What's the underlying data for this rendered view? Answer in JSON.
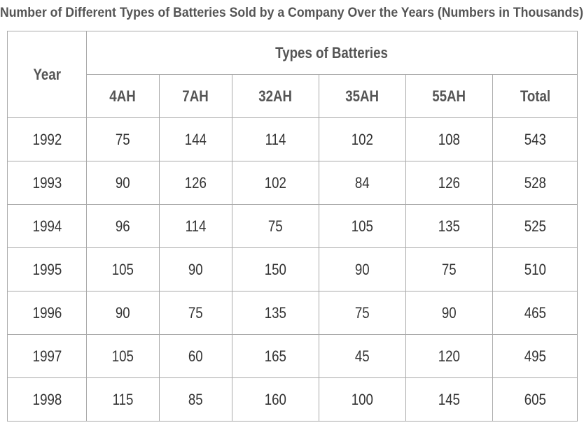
{
  "title": "Number of Different Types of Batteries Sold by a Company Over the Years (Numbers in Thousands)",
  "table": {
    "year_header": "Year",
    "group_header": "Types of Batteries",
    "columns": [
      "4AH",
      "7AH",
      "32AH",
      "35AH",
      "55AH",
      "Total"
    ],
    "rows": [
      {
        "year": "1992",
        "values": [
          "75",
          "144",
          "114",
          "102",
          "108",
          "543"
        ]
      },
      {
        "year": "1993",
        "values": [
          "90",
          "126",
          "102",
          "84",
          "126",
          "528"
        ]
      },
      {
        "year": "1994",
        "values": [
          "96",
          "114",
          "75",
          "105",
          "135",
          "525"
        ]
      },
      {
        "year": "1995",
        "values": [
          "105",
          "90",
          "150",
          "90",
          "75",
          "510"
        ]
      },
      {
        "year": "1996",
        "values": [
          "90",
          "75",
          "135",
          "75",
          "90",
          "465"
        ]
      },
      {
        "year": "1997",
        "values": [
          "105",
          "60",
          "165",
          "45",
          "120",
          "495"
        ]
      },
      {
        "year": "1998",
        "values": [
          "115",
          "85",
          "160",
          "100",
          "145",
          "605"
        ]
      }
    ]
  }
}
